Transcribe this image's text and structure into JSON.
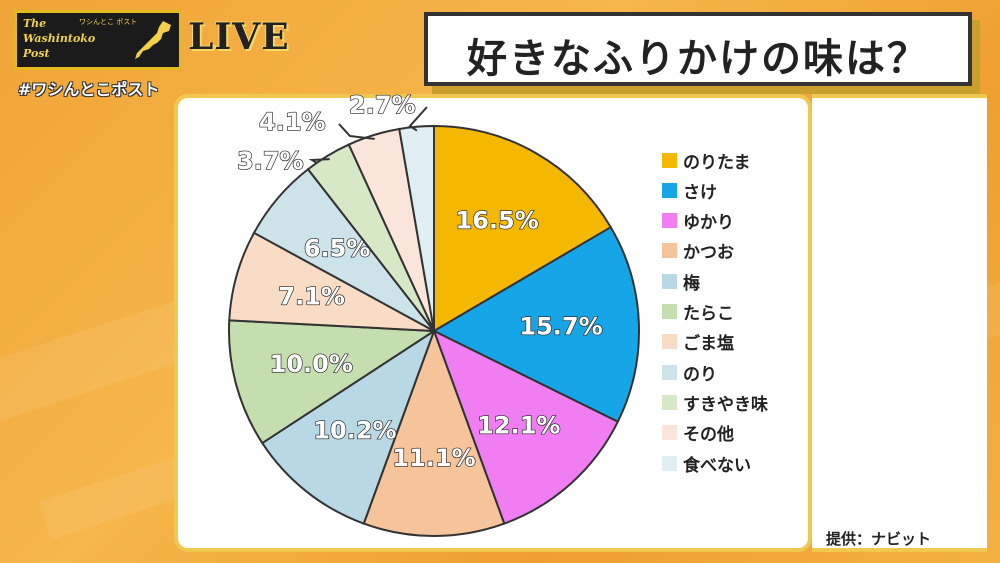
{
  "header": {
    "logo_text": "The\nWashintoko\nPost",
    "logo_sub": "ワシんとこ ポスト",
    "live_label": "LIVE",
    "hashtag": "#ワシんとこポスト",
    "title": "好きなふりかけの味は？"
  },
  "footer": {
    "source": "提供：ナビット"
  },
  "chart_data": {
    "type": "pie",
    "title": "好きなふりかけの味は？",
    "legend_position": "right",
    "slices": [
      {
        "label": "のりたま",
        "value": 16.5,
        "display": "16.5%",
        "color": "#f5b800"
      },
      {
        "label": "さけ",
        "value": 15.7,
        "display": "15.7%",
        "color": "#16a6e8"
      },
      {
        "label": "ゆかり",
        "value": 12.1,
        "display": "12.1%",
        "color": "#f07ef2"
      },
      {
        "label": "かつお",
        "value": 11.1,
        "display": "11.1%",
        "color": "#f6c49a"
      },
      {
        "label": "梅",
        "value": 10.2,
        "display": "10.2%",
        "color": "#b7d8e4"
      },
      {
        "label": "たらこ",
        "value": 10.0,
        "display": "10.0%",
        "color": "#c5deaf"
      },
      {
        "label": "ごま塩",
        "value": 7.1,
        "display": "7.1%",
        "color": "#f8dcc6"
      },
      {
        "label": "のり",
        "value": 6.5,
        "display": "6.5%",
        "color": "#cde3ea"
      },
      {
        "label": "すきやき味",
        "value": 3.7,
        "display": "3.7%",
        "color": "#d7e8c6"
      },
      {
        "label": "その他",
        "value": 4.1,
        "display": "4.1%",
        "color": "#fbe4d9"
      },
      {
        "label": "食べない",
        "value": 2.7,
        "display": "2.7%",
        "color": "#dfeef3"
      }
    ]
  }
}
